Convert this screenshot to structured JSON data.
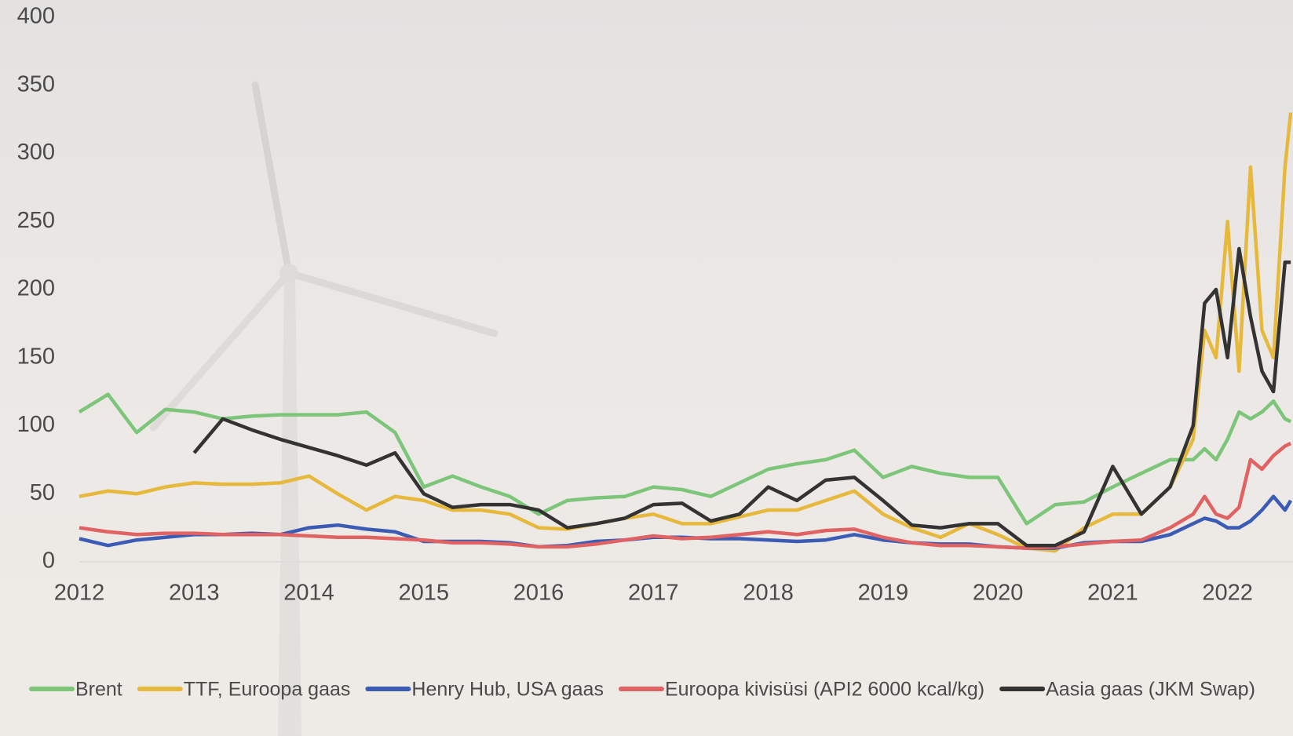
{
  "chart_data": {
    "type": "line",
    "x": [
      2012,
      2012.25,
      2012.5,
      2012.75,
      2013,
      2013.25,
      2013.5,
      2013.75,
      2014,
      2014.25,
      2014.5,
      2014.75,
      2015,
      2015.25,
      2015.5,
      2015.75,
      2016,
      2016.25,
      2016.5,
      2016.75,
      2017,
      2017.25,
      2017.5,
      2017.75,
      2018,
      2018.25,
      2018.5,
      2018.75,
      2019,
      2019.25,
      2019.5,
      2019.75,
      2020,
      2020.25,
      2020.5,
      2020.75,
      2021,
      2021.25,
      2021.5,
      2021.7,
      2021.8,
      2021.9,
      2022,
      2022.1,
      2022.2,
      2022.3,
      2022.4,
      2022.5,
      2022.55
    ],
    "series": [
      {
        "name": "Brent",
        "color": "#7cc579",
        "values": [
          110,
          123,
          95,
          112,
          110,
          105,
          107,
          108,
          108,
          108,
          110,
          95,
          55,
          63,
          55,
          48,
          35,
          45,
          47,
          48,
          55,
          53,
          48,
          58,
          68,
          72,
          75,
          82,
          62,
          70,
          65,
          62,
          62,
          28,
          42,
          44,
          55,
          65,
          75,
          75,
          83,
          75,
          90,
          110,
          105,
          110,
          118,
          105,
          103
        ]
      },
      {
        "name": "TTF, Euroopa gaas",
        "color": "#e6b83c",
        "values": [
          48,
          52,
          50,
          55,
          58,
          57,
          57,
          58,
          63,
          50,
          38,
          48,
          45,
          38,
          38,
          35,
          25,
          24,
          28,
          32,
          35,
          28,
          28,
          33,
          38,
          38,
          45,
          52,
          35,
          25,
          18,
          28,
          20,
          10,
          8,
          25,
          35,
          35,
          55,
          90,
          170,
          150,
          250,
          140,
          290,
          170,
          150,
          290,
          330
        ]
      },
      {
        "name": "Henry Hub, USA gaas",
        "color": "#3b5bb4",
        "values": [
          17,
          12,
          16,
          18,
          20,
          20,
          21,
          20,
          25,
          27,
          24,
          22,
          15,
          15,
          15,
          14,
          11,
          12,
          15,
          16,
          18,
          18,
          17,
          17,
          16,
          15,
          16,
          20,
          16,
          14,
          13,
          13,
          11,
          10,
          10,
          14,
          15,
          15,
          20,
          28,
          32,
          30,
          25,
          25,
          30,
          38,
          48,
          38,
          45
        ]
      },
      {
        "name": "Euroopa kivisüsi (API2 6000 kcal/kg)",
        "color": "#e06262",
        "values": [
          25,
          22,
          20,
          21,
          21,
          20,
          20,
          20,
          19,
          18,
          18,
          17,
          16,
          14,
          14,
          13,
          11,
          11,
          13,
          16,
          19,
          17,
          18,
          20,
          22,
          20,
          23,
          24,
          18,
          14,
          12,
          12,
          11,
          10,
          11,
          13,
          15,
          16,
          25,
          35,
          48,
          35,
          32,
          40,
          75,
          68,
          78,
          85,
          87
        ]
      },
      {
        "name": "Aasia gaas (JKM Swap)",
        "color": "#333333",
        "values": [
          null,
          null,
          null,
          null,
          80,
          105,
          97,
          90,
          84,
          78,
          71,
          80,
          50,
          40,
          42,
          42,
          38,
          25,
          28,
          32,
          42,
          43,
          30,
          35,
          55,
          45,
          60,
          62,
          45,
          27,
          25,
          28,
          28,
          12,
          12,
          22,
          70,
          35,
          55,
          100,
          190,
          200,
          150,
          230,
          180,
          140,
          125,
          220,
          220
        ]
      }
    ],
    "xlim": [
      2012,
      2022.57
    ],
    "xticks": [
      2012,
      2013,
      2014,
      2015,
      2016,
      2017,
      2018,
      2019,
      2020,
      2021,
      2022
    ],
    "ylim": [
      0,
      400
    ],
    "yticks": [
      0,
      50,
      100,
      150,
      200,
      250,
      300,
      350,
      400
    ],
    "grid": false,
    "legend": "bottom"
  }
}
